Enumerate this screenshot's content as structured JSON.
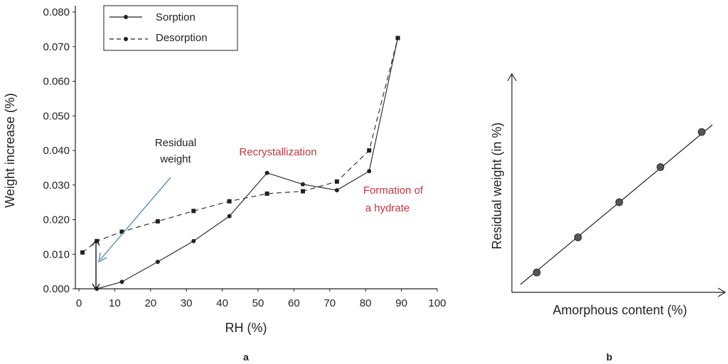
{
  "chart_data": [
    {
      "type": "line",
      "panel_label": "a",
      "xlabel": "RH  (%)",
      "ylabel": "Weight increase  (%)",
      "xlim": [
        0,
        100
      ],
      "ylim": [
        0,
        0.08
      ],
      "x_ticks": [
        "0",
        "10",
        "20",
        "30",
        "40",
        "50",
        "60",
        "70",
        "80",
        "90",
        "100"
      ],
      "y_ticks": [
        "0.000",
        "0.010",
        "0.020",
        "0.030",
        "0.040",
        "0.050",
        "0.060",
        "0.070",
        "0.080"
      ],
      "legend": [
        "Sorption",
        "Desorption"
      ],
      "legend_position": "top-left",
      "series": [
        {
          "name": "Sorption",
          "style": "solid",
          "x": [
            5,
            12,
            22,
            32,
            42,
            52.5,
            62.5,
            72,
            81,
            89
          ],
          "y": [
            0.0,
            0.002,
            0.0078,
            0.0138,
            0.021,
            0.0335,
            0.0302,
            0.0285,
            0.034,
            0.0725
          ]
        },
        {
          "name": "Desorption",
          "style": "dashed",
          "x": [
            1,
            5,
            12,
            22,
            32,
            42,
            52.5,
            62.5,
            72,
            81,
            89
          ],
          "y": [
            0.0105,
            0.0138,
            0.0165,
            0.0195,
            0.0225,
            0.0253,
            0.0275,
            0.0282,
            0.031,
            0.04,
            0.0725
          ]
        }
      ],
      "annotations": {
        "residual_line1": "Residual",
        "residual_line2": "weight",
        "recrystallization": "Recrystallization",
        "hydrate_line1": "Formation of",
        "hydrate_line2": "a hydrate",
        "red_color": "#c4373f",
        "arrow_color": "#4a86b8"
      }
    },
    {
      "type": "scatter",
      "panel_label": "b",
      "xlabel": "Amorphous content (%)",
      "ylabel": "Residual weight (in %)",
      "points": [
        {
          "x": 1,
          "y": 1
        },
        {
          "x": 2,
          "y": 2
        },
        {
          "x": 3,
          "y": 3
        },
        {
          "x": 4,
          "y": 4
        },
        {
          "x": 5,
          "y": 5
        }
      ],
      "fit_line": true
    }
  ]
}
